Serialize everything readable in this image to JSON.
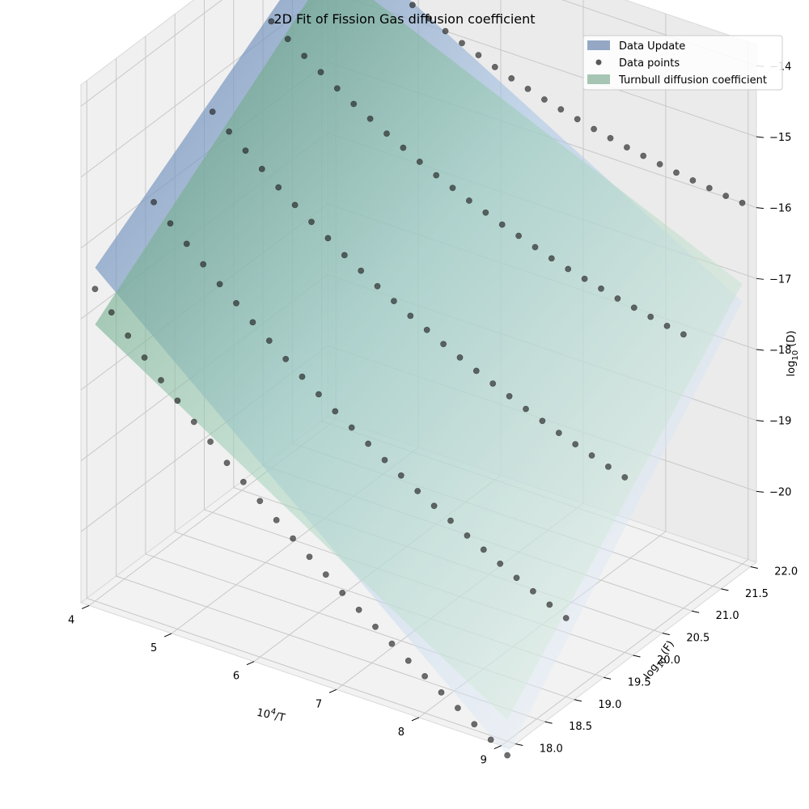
{
  "chart_data": {
    "type": "surface",
    "title": "2D Fit of Fission Gas diffusion coefficient",
    "xlabel": "10",
    "xlabel_sup": "4",
    "xlabel_tail": "/T",
    "ylabel": "log",
    "ylabel_sub": "10",
    "ylabel_tail": " (F)",
    "zlabel": "log",
    "zlabel_sub": "10",
    "zlabel_tail": " (D)",
    "xlim": [
      3.9,
      9.1
    ],
    "ylim": [
      17.9,
      22.1
    ],
    "zlim": [
      -21,
      -13.7
    ],
    "x_ticks": [
      "4",
      "5",
      "6",
      "7",
      "8",
      "9"
    ],
    "x_tick_values": [
      4,
      5,
      6,
      7,
      8,
      9
    ],
    "y_ticks": [
      "18.0",
      "18.5",
      "19.0",
      "19.5",
      "20.0",
      "20.5",
      "21.0",
      "21.5",
      "22.0"
    ],
    "y_tick_values": [
      18.0,
      18.5,
      19.0,
      19.5,
      20.0,
      20.5,
      21.0,
      21.5,
      22.0
    ],
    "z_ticks": [
      "−20",
      "−19",
      "−18",
      "−17",
      "−16",
      "−15",
      "−14"
    ],
    "z_tick_values": [
      -20,
      -19,
      -18,
      -17,
      -16,
      -15,
      -14
    ],
    "grid": true,
    "legend_position": "top-right",
    "series": [
      {
        "name": "Data Update",
        "kind": "surface",
        "colors": [
          "#4e6fa0",
          "#a9c6e6",
          "#ffffff"
        ],
        "corner_values": {
          "x4_y18": -16.3,
          "x4_y22": -14.0,
          "x9_y18": -21.2,
          "x9_y22": -17.3
        }
      },
      {
        "name": "Data points",
        "kind": "scatter",
        "color": "#222222",
        "rows": [
          {
            "y": 18.0,
            "x": [
              4.0,
              4.2,
              4.4,
              4.6,
              4.8,
              5.0,
              5.2,
              5.4,
              5.6,
              5.8,
              6.0,
              6.2,
              6.4,
              6.6,
              6.8,
              7.0,
              7.2,
              7.4,
              7.6,
              7.8,
              8.0,
              8.2,
              8.4,
              8.6,
              8.8,
              9.0
            ],
            "z": [
              -16.6,
              -16.85,
              -17.1,
              -17.33,
              -17.57,
              -17.78,
              -18.0,
              -18.2,
              -18.42,
              -18.61,
              -18.8,
              -18.99,
              -19.17,
              -19.35,
              -19.52,
              -19.7,
              -19.86,
              -20.02,
              -20.18,
              -20.34,
              -20.48,
              -20.63,
              -20.77,
              -20.92,
              -21.06,
              -21.2
            ]
          },
          {
            "y": 19.0,
            "x": [
              4.0,
              4.2,
              4.4,
              4.6,
              4.8,
              5.0,
              5.2,
              5.4,
              5.6,
              5.8,
              6.0,
              6.2,
              6.4,
              6.6,
              6.8,
              7.0,
              7.2,
              7.4,
              7.6,
              7.8,
              8.0,
              8.2,
              8.4,
              8.6,
              8.8,
              9.0
            ],
            "z": [
              -16.0,
              -16.22,
              -16.43,
              -16.64,
              -16.84,
              -17.03,
              -17.22,
              -17.4,
              -17.58,
              -17.75,
              -17.92,
              -18.08,
              -18.23,
              -18.38,
              -18.53,
              -18.67,
              -18.81,
              -18.94,
              -19.07,
              -19.2,
              -19.32,
              -19.44,
              -19.56,
              -19.67,
              -19.78,
              -19.89
            ]
          },
          {
            "y": 20.0,
            "x": [
              4.0,
              4.2,
              4.4,
              4.6,
              4.8,
              5.0,
              5.2,
              5.4,
              5.6,
              5.8,
              6.0,
              6.2,
              6.4,
              6.6,
              6.8,
              7.0,
              7.2,
              7.4,
              7.6,
              7.8,
              8.0,
              8.2,
              8.4,
              8.6,
              8.8,
              9.0
            ],
            "z": [
              -15.35,
              -15.55,
              -15.74,
              -15.92,
              -16.1,
              -16.27,
              -16.43,
              -16.58,
              -16.74,
              -16.88,
              -17.02,
              -17.15,
              -17.28,
              -17.4,
              -17.52,
              -17.63,
              -17.74,
              -17.84,
              -17.94,
              -18.04,
              -18.13,
              -18.22,
              -18.3,
              -18.38,
              -18.46,
              -18.53
            ]
          },
          {
            "y": 21.0,
            "x": [
              4.0,
              4.2,
              4.4,
              4.6,
              4.8,
              5.0,
              5.2,
              5.4,
              5.6,
              5.8,
              6.0,
              6.2,
              6.4,
              6.6,
              6.8,
              7.0,
              7.2,
              7.4,
              7.6,
              7.8,
              8.0,
              8.2,
              8.4,
              8.6,
              8.8,
              9.0
            ],
            "z": [
              -14.7,
              -14.87,
              -15.03,
              -15.18,
              -15.33,
              -15.47,
              -15.6,
              -15.73,
              -15.85,
              -15.97,
              -16.08,
              -16.18,
              -16.28,
              -16.37,
              -16.46,
              -16.54,
              -16.62,
              -16.7,
              -16.77,
              -16.83,
              -16.89,
              -16.95,
              -17.0,
              -17.05,
              -17.1,
              -17.14
            ]
          },
          {
            "y": 22.0,
            "x": [
              4.0,
              4.2,
              4.4,
              4.6,
              4.8,
              5.0,
              5.2,
              5.4,
              5.6,
              5.8,
              6.0,
              6.2,
              6.4,
              6.6,
              6.8,
              7.0,
              7.2,
              7.4,
              7.6,
              7.8,
              8.0,
              8.2,
              8.4,
              8.6,
              8.8,
              9.0
            ],
            "z": [
              -14.05,
              -14.2,
              -14.33,
              -14.46,
              -14.58,
              -14.7,
              -14.81,
              -14.91,
              -15.0,
              -15.09,
              -15.18,
              -15.26,
              -15.33,
              -15.4,
              -15.46,
              -15.52,
              -15.58,
              -15.63,
              -15.68,
              -15.72,
              -15.76,
              -15.8,
              -15.83,
              -15.86,
              -15.89,
              -15.91
            ]
          }
        ]
      },
      {
        "name": "Turnbull diffusion coefficient",
        "kind": "surface",
        "colors": [
          "#4f8f6a",
          "#9fd0b8",
          "#f2f8ee"
        ],
        "corner_values": {
          "x4_y18": -17.1,
          "x4_y22": -14.55,
          "x9_y18": -20.7,
          "x9_y22": -17.05
        }
      }
    ]
  }
}
